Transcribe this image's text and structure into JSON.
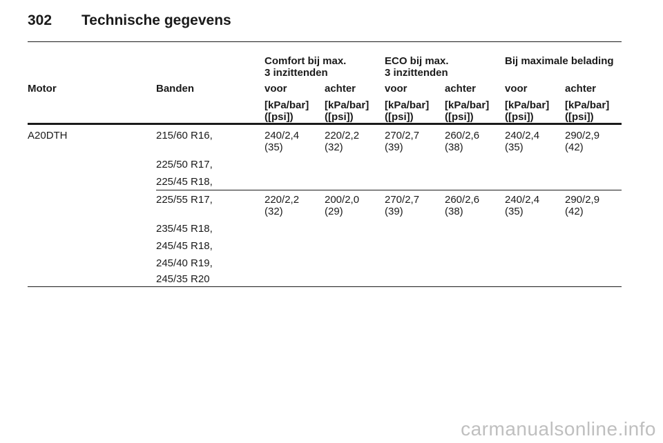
{
  "header": {
    "page_number": "302",
    "title": "Technische gegevens"
  },
  "group_headers": {
    "comfort": [
      "Comfort bij max.",
      "3 inzittenden"
    ],
    "eco": [
      "ECO bij max.",
      "3 inzittenden"
    ],
    "max": [
      "Bij maximale belading"
    ]
  },
  "columns": {
    "motor": "Motor",
    "banden": "Banden",
    "voor": "voor",
    "achter": "achter"
  },
  "unit": [
    "[kPa/bar]",
    "([psi])"
  ],
  "engine": "A20DTH",
  "groups": [
    {
      "tyres": [
        "215/60 R16,",
        "225/50 R17,",
        "225/45 R18,"
      ],
      "pressures": [
        [
          "240/2,4",
          "(35)"
        ],
        [
          "220/2,2",
          "(32)"
        ],
        [
          "270/2,7",
          "(39)"
        ],
        [
          "260/2,6",
          "(38)"
        ],
        [
          "240/2,4",
          "(35)"
        ],
        [
          "290/2,9",
          "(42)"
        ]
      ]
    },
    {
      "tyres": [
        "225/55 R17,",
        "235/45 R18,",
        "245/45 R18,",
        "245/40 R19,",
        "245/35 R20"
      ],
      "pressures": [
        [
          "220/2,2",
          "(32)"
        ],
        [
          "200/2,0",
          "(29)"
        ],
        [
          "270/2,7",
          "(39)"
        ],
        [
          "260/2,6",
          "(38)"
        ],
        [
          "240/2,4",
          "(35)"
        ],
        [
          "290/2,9",
          "(42)"
        ]
      ]
    }
  ],
  "watermark": "carmanualsonline.info"
}
